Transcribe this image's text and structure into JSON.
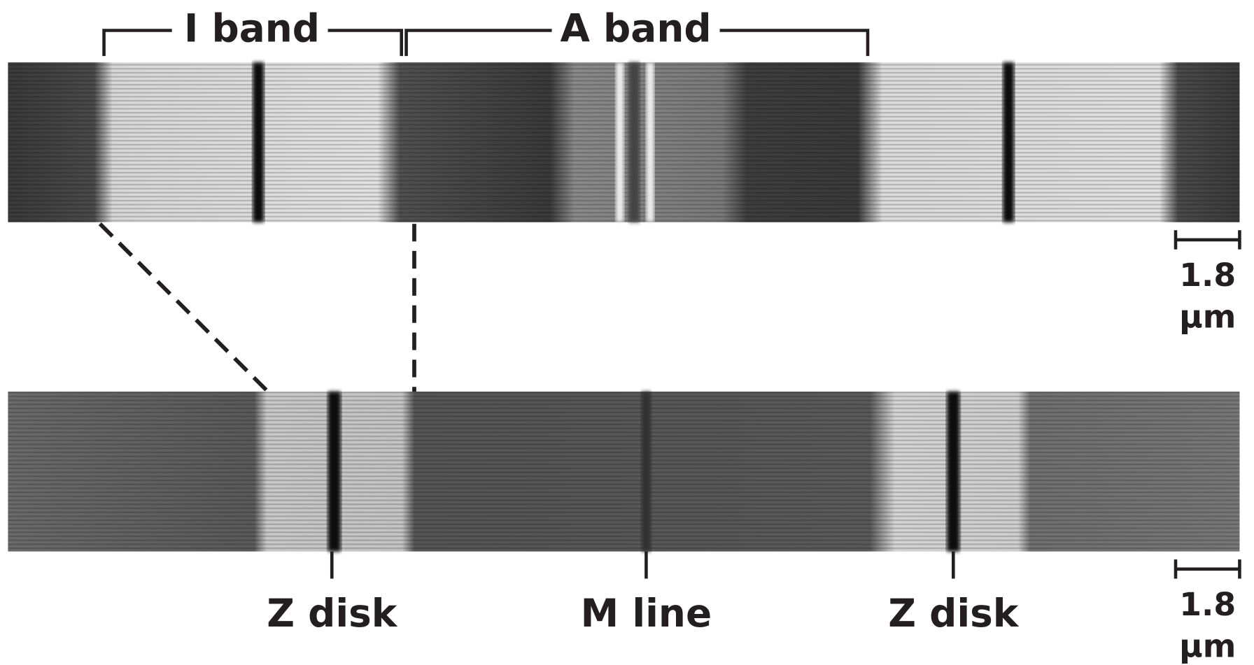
{
  "top_panel": {
    "bracket_labels": [
      "I band",
      "A band"
    ],
    "scale_bar": {
      "length": "1.8",
      "unit": "μm"
    }
  },
  "bottom_panel": {
    "markers": [
      "Z disk",
      "M line",
      "Z disk"
    ],
    "scale_bar": {
      "length": "1.8",
      "unit": "μm"
    }
  }
}
